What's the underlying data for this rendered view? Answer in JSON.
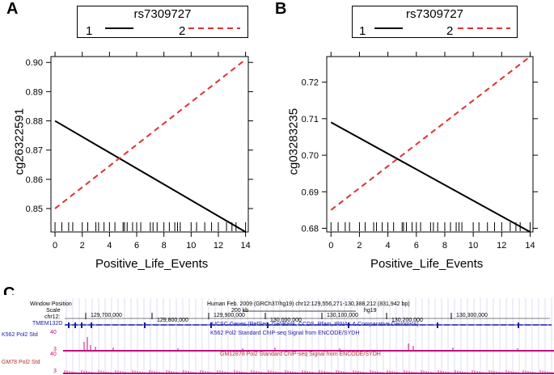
{
  "panels": {
    "A": {
      "letter": "A"
    },
    "B": {
      "letter": "B"
    },
    "C": {
      "letter": "C"
    }
  },
  "chart_data": [
    {
      "type": "line",
      "panel": "A",
      "legend_title": "rs7309727",
      "xlabel": "Positive_Life_Events",
      "ylabel": "cg26322591",
      "xlim": [
        -0.3,
        14.2
      ],
      "ylim": [
        0.842,
        0.902
      ],
      "xticks": [
        0,
        2,
        4,
        6,
        8,
        10,
        12,
        14
      ],
      "yticks": [
        0.85,
        0.86,
        0.87,
        0.88,
        0.89,
        0.9
      ],
      "series": [
        {
          "name": "1",
          "color": "#000000",
          "style": "solid",
          "x": [
            0,
            14
          ],
          "y": [
            0.88,
            0.842
          ]
        },
        {
          "name": "2",
          "color": "#e03030",
          "style": "dashed",
          "x": [
            0,
            14
          ],
          "y": [
            0.85,
            0.901
          ]
        }
      ],
      "rug": [
        0,
        0.5,
        1,
        1.3,
        2,
        2.4,
        3,
        3.2,
        3.6,
        4,
        4.4,
        5,
        5.1,
        5.3,
        5.7,
        6,
        6.3,
        7,
        7.2,
        7.5,
        8,
        8.4,
        8.8,
        9,
        9.2,
        10,
        10.4,
        11,
        11.5,
        12,
        12.6,
        13,
        13.3,
        14
      ]
    },
    {
      "type": "line",
      "panel": "B",
      "legend_title": "rs7309727",
      "xlabel": "Positive_Life_Events",
      "ylabel": "cg03283235",
      "xlim": [
        -0.3,
        14.2
      ],
      "ylim": [
        0.679,
        0.727
      ],
      "xticks": [
        0,
        2,
        4,
        6,
        8,
        10,
        12,
        14
      ],
      "yticks": [
        0.68,
        0.69,
        0.7,
        0.71,
        0.72
      ],
      "series": [
        {
          "name": "1",
          "color": "#000000",
          "style": "solid",
          "x": [
            0,
            14
          ],
          "y": [
            0.709,
            0.679
          ]
        },
        {
          "name": "2",
          "color": "#e03030",
          "style": "dashed",
          "x": [
            0,
            14
          ],
          "y": [
            0.685,
            0.727
          ]
        }
      ],
      "rug": [
        0,
        0.5,
        1,
        1.3,
        2,
        2.4,
        3,
        3.2,
        3.6,
        4,
        4.4,
        5,
        5.1,
        5.3,
        5.7,
        6,
        6.3,
        7,
        7.2,
        7.5,
        8,
        8.4,
        8.8,
        9,
        9.2,
        10,
        10.4,
        11,
        11.5,
        12,
        12.6,
        13,
        13.3,
        14
      ]
    }
  ],
  "browser": {
    "labels": {
      "window_position": "Window Position",
      "scale": "Scale",
      "chr": "chr12:",
      "gene": "TMEM132D",
      "k562": "K562 Pol2 Std",
      "gm": "GM78 Pol2 Std",
      "k562_top": "40",
      "k562_bottom": "3",
      "gm_top": "40",
      "gm_bottom": "3"
    },
    "header": "Human Feb. 2009 (GRCh37/hg19)  chr12:129,556,271-130,388,212 (831,942 bp)",
    "scale_text": "200 kb",
    "hg19": "hg19",
    "positions": [
      "129,700,000",
      "129,800,000",
      "129,900,000",
      "130,000,000",
      "130,100,000",
      "130,200,000",
      "130,300,000"
    ],
    "genes_track": "UCSC Genes (RefSeq, GenBank, CCDS, Rfam, tRNAs & Comparative Genomics)",
    "k562_track": "K562 Pol2 Standard ChIP-seq Signal from ENCODE/SYDH",
    "gm_track": "GM12878 Pol2 Standard ChIP-seq Signal from ENCODE/SYDH",
    "colors": {
      "blue": "#1a1aa8",
      "magenta": "#c0107c",
      "red_text": "#b03030"
    }
  }
}
